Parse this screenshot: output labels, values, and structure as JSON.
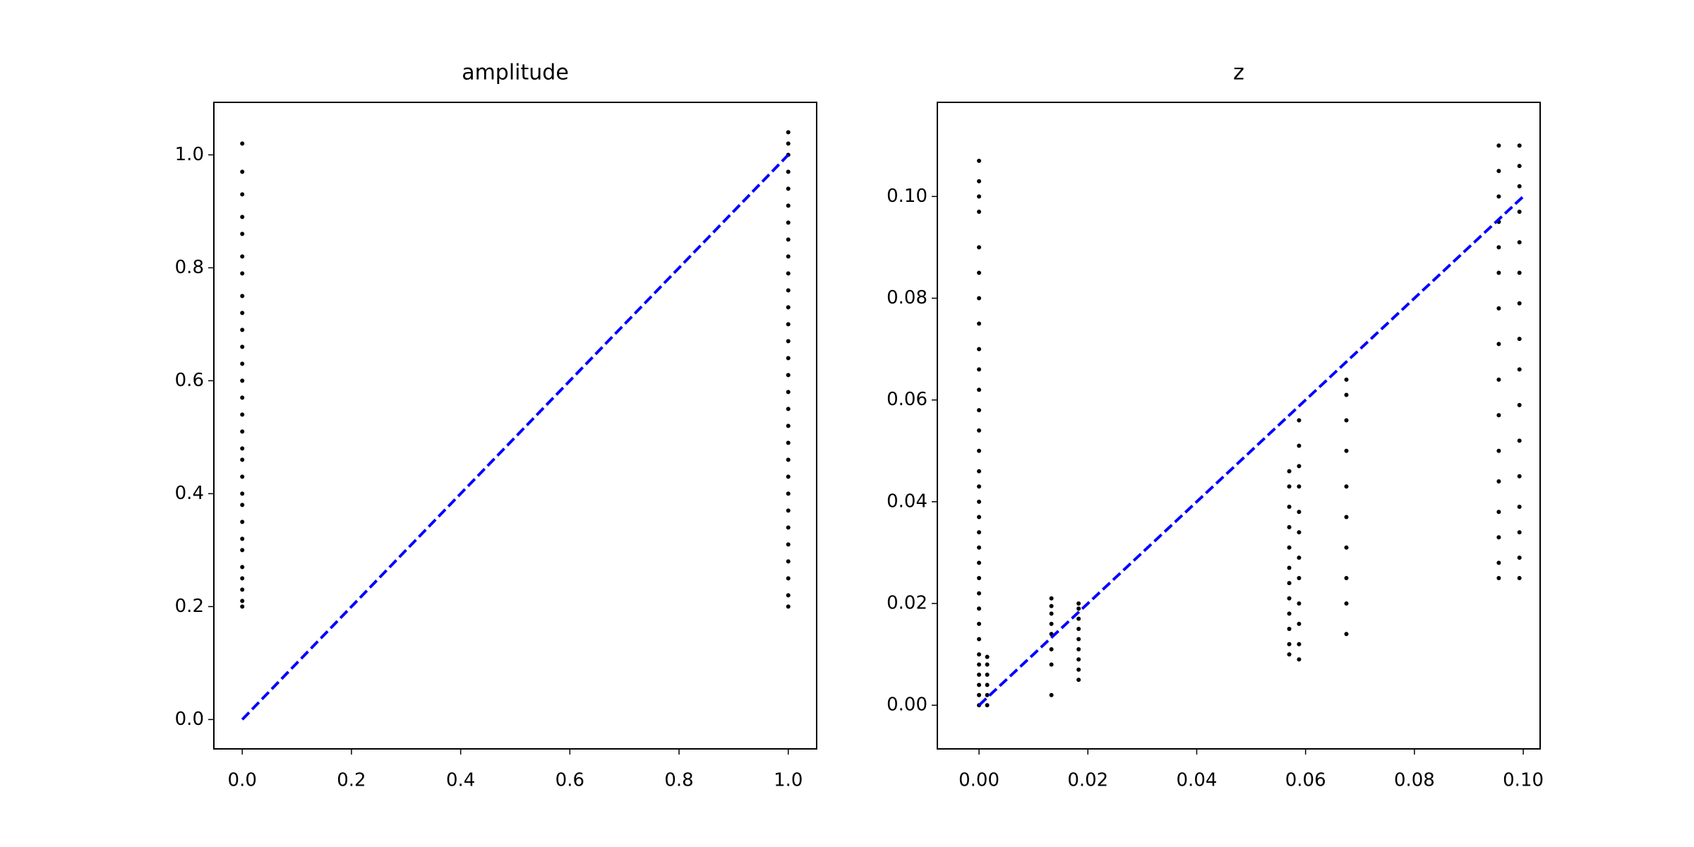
{
  "chart_data": [
    {
      "type": "scatter",
      "title": "amplitude",
      "xlim": [
        -0.052,
        1.052
      ],
      "ylim": [
        -0.052,
        1.093
      ],
      "xticks": [
        {
          "value": 0,
          "label": "0.0"
        },
        0.2,
        0.4,
        0.6,
        0.8,
        {
          "value": 1,
          "label": "1.0"
        }
      ],
      "yticks": [
        {
          "value": 0,
          "label": "0.0"
        },
        0.2,
        0.4,
        0.6,
        0.8,
        {
          "value": 1,
          "label": "1.0"
        }
      ],
      "series": [
        {
          "type": "scatter",
          "color": "#000000",
          "x": [
            0,
            0,
            0,
            0,
            0,
            0,
            0,
            0,
            0,
            0,
            0,
            0,
            0,
            0,
            0,
            0,
            0,
            0,
            0,
            0,
            0,
            0,
            0,
            0,
            0,
            0,
            0,
            0,
            0,
            1,
            1,
            1,
            1,
            1,
            1,
            1,
            1,
            1,
            1,
            1,
            1,
            1,
            1,
            1,
            1,
            1,
            1,
            1,
            1,
            1,
            1,
            1,
            1,
            1,
            1,
            1,
            1,
            1,
            1
          ],
          "values": [
            0.2,
            0.21,
            0.23,
            0.25,
            0.27,
            0.3,
            0.32,
            0.35,
            0.38,
            0.4,
            0.43,
            0.46,
            0.48,
            0.51,
            0.54,
            0.57,
            0.6,
            0.63,
            0.66,
            0.69,
            0.72,
            0.75,
            0.79,
            0.82,
            0.86,
            0.89,
            0.93,
            0.97,
            1.02,
            0.2,
            0.22,
            0.25,
            0.28,
            0.31,
            0.34,
            0.37,
            0.4,
            0.43,
            0.46,
            0.49,
            0.52,
            0.55,
            0.58,
            0.61,
            0.64,
            0.67,
            0.7,
            0.73,
            0.76,
            0.79,
            0.82,
            0.85,
            0.88,
            0.91,
            0.94,
            0.97,
            1.0,
            1.02,
            1.04
          ]
        },
        {
          "type": "line",
          "color": "#0000ff",
          "dashed": true,
          "x": [
            0,
            1
          ],
          "values": [
            0,
            1
          ]
        }
      ]
    },
    {
      "type": "scatter",
      "title": "z",
      "xlim": [
        -0.00766,
        0.1031
      ],
      "ylim": [
        -0.00858,
        0.1185
      ],
      "xticks": [
        {
          "value": 0,
          "label": "0.00"
        },
        {
          "value": 0.02,
          "label": "0.02"
        },
        {
          "value": 0.04,
          "label": "0.04"
        },
        {
          "value": 0.06,
          "label": "0.06"
        },
        {
          "value": 0.08,
          "label": "0.08"
        },
        {
          "value": 0.1,
          "label": "0.10"
        }
      ],
      "yticks": [
        {
          "value": 0,
          "label": "0.00"
        },
        {
          "value": 0.02,
          "label": "0.02"
        },
        {
          "value": 0.04,
          "label": "0.04"
        },
        {
          "value": 0.06,
          "label": "0.06"
        },
        {
          "value": 0.08,
          "label": "0.08"
        },
        {
          "value": 0.1,
          "label": "0.10"
        }
      ],
      "series": [
        {
          "type": "scatter",
          "color": "#000000",
          "x": [
            0,
            0,
            0,
            0,
            0,
            0,
            0,
            0,
            0,
            0,
            0,
            0,
            0,
            0,
            0,
            0,
            0,
            0,
            0,
            0,
            0,
            0,
            0,
            0,
            0,
            0,
            0,
            0,
            0,
            0,
            0,
            0,
            0.0015,
            0.0015,
            0.0015,
            0.0015,
            0.0015,
            0.0015,
            0.0133,
            0.0133,
            0.0133,
            0.0133,
            0.0133,
            0.0133,
            0.0133,
            0.0133,
            0.0183,
            0.0183,
            0.0183,
            0.0183,
            0.0183,
            0.0183,
            0.0183,
            0.0183,
            0.0183,
            0.057,
            0.057,
            0.057,
            0.057,
            0.057,
            0.057,
            0.057,
            0.057,
            0.057,
            0.057,
            0.057,
            0.057,
            0.0588,
            0.0588,
            0.0588,
            0.0588,
            0.0588,
            0.0588,
            0.0588,
            0.0588,
            0.0588,
            0.0588,
            0.0588,
            0.0588,
            0.0675,
            0.0675,
            0.0675,
            0.0675,
            0.0675,
            0.0675,
            0.0675,
            0.0675,
            0.0675,
            0.0675,
            0.0955,
            0.0955,
            0.0955,
            0.0955,
            0.0955,
            0.0955,
            0.0955,
            0.0955,
            0.0955,
            0.0955,
            0.0955,
            0.0955,
            0.0955,
            0.0955,
            0.0955,
            0.0955,
            0.0993,
            0.0993,
            0.0993,
            0.0993,
            0.0993,
            0.0993,
            0.0993,
            0.0993,
            0.0993,
            0.0993,
            0.0993,
            0.0993,
            0.0993,
            0.0993,
            0.0993,
            0.0993
          ],
          "values": [
            0,
            0.002,
            0.004,
            0.006,
            0.008,
            0.01,
            0.013,
            0.016,
            0.019,
            0.022,
            0.025,
            0.028,
            0.031,
            0.034,
            0.037,
            0.04,
            0.043,
            0.046,
            0.05,
            0.054,
            0.058,
            0.062,
            0.066,
            0.07,
            0.075,
            0.08,
            0.085,
            0.09,
            0.097,
            0.1,
            0.103,
            0.107,
            0,
            0.002,
            0.004,
            0.006,
            0.008,
            0.0095,
            0.002,
            0.008,
            0.011,
            0.014,
            0.016,
            0.018,
            0.0195,
            0.021,
            0.005,
            0.007,
            0.009,
            0.011,
            0.013,
            0.015,
            0.017,
            0.019,
            0.02,
            0.01,
            0.012,
            0.015,
            0.018,
            0.021,
            0.024,
            0.027,
            0.031,
            0.035,
            0.039,
            0.043,
            0.046,
            0.009,
            0.012,
            0.016,
            0.02,
            0.025,
            0.029,
            0.034,
            0.038,
            0.043,
            0.047,
            0.051,
            0.056,
            0.014,
            0.02,
            0.025,
            0.031,
            0.037,
            0.043,
            0.05,
            0.056,
            0.061,
            0.064,
            0.025,
            0.028,
            0.033,
            0.038,
            0.044,
            0.05,
            0.057,
            0.064,
            0.071,
            0.078,
            0.085,
            0.09,
            0.095,
            0.1,
            0.105,
            0.11,
            0.025,
            0.029,
            0.034,
            0.039,
            0.045,
            0.052,
            0.059,
            0.066,
            0.072,
            0.079,
            0.085,
            0.091,
            0.097,
            0.102,
            0.106,
            0.11
          ]
        },
        {
          "type": "line",
          "color": "#0000ff",
          "dashed": true,
          "x": [
            0,
            0.1
          ],
          "values": [
            0,
            0.1
          ]
        }
      ]
    }
  ]
}
